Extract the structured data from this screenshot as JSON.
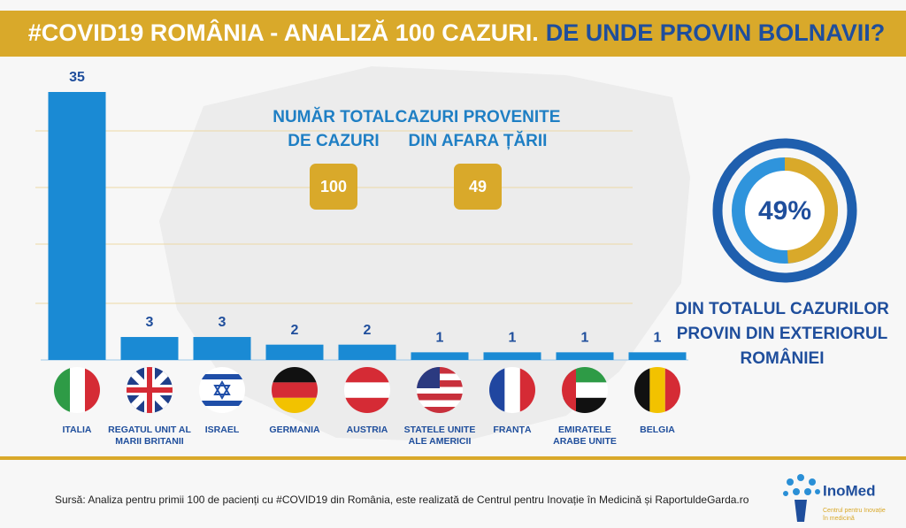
{
  "header": {
    "title_a": "#COVID19 ROMÂNIA - ANALIZĂ 100 CAZURI.",
    "title_b": "DE UNDE PROVIN BOLNAVII?"
  },
  "chart_data": [
    {
      "type": "bar",
      "categories": [
        "ITALIA",
        "REGATUL UNIT AL MARII BRITANII",
        "ISRAEL",
        "GERMANIA",
        "AUSTRIA",
        "STATELE UNITE ALE AMERICII",
        "FRANȚA",
        "EMIRATELE ARABE UNITE",
        "BELGIA"
      ],
      "values": [
        35,
        3,
        3,
        2,
        2,
        1,
        1,
        1,
        1
      ],
      "color": "#1a8ad4"
    },
    {
      "type": "donut",
      "values": [
        49
      ],
      "value_labels": [
        "49%"
      ],
      "color": "#d9a92a",
      "caption": [
        "DIN TOTALUL CAZURILOR",
        "PROVIN DIN EXTERIORUL",
        "ROMÂNIEI"
      ]
    }
  ],
  "stats": [
    {
      "label": [
        "NUMĂR TOTAL",
        "DE CAZURI"
      ],
      "value": 100
    },
    {
      "label": [
        "CAZURI PROVENITE",
        "DIN AFARA ȚĂRII"
      ],
      "value": 49
    }
  ],
  "footer": {
    "source": "Sursă: Analiza pentru primii 100 de pacienți cu #COVID19 din România, este realizată de Centrul pentru Inovație în Medicină și RaportuldeGarda.ro",
    "logo": "InoMed",
    "logo_sub": [
      "Centrul pentru Inovație",
      "în medicină"
    ]
  }
}
